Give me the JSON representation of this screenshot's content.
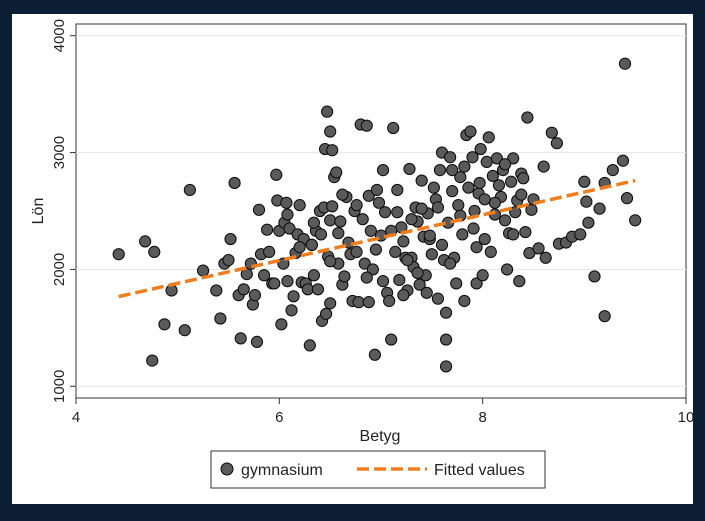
{
  "chart_data": {
    "type": "scatter",
    "title": "",
    "xlabel": "Betyg",
    "ylabel": "Lön",
    "xlim": [
      4,
      10
    ],
    "ylim": [
      900,
      4100
    ],
    "xticks": [
      4,
      6,
      8,
      10
    ],
    "yticks": [
      1000,
      2000,
      3000,
      4000
    ],
    "grid": "horizontal",
    "legend_position": "bottom",
    "colors": {
      "outer_background": "#0c1e33",
      "frame_background": "#ffffff",
      "marker_fill": "#5a5a5a",
      "marker_edge": "#0a0a0a",
      "fit_line": "#f07d1e",
      "grid": "#e6e6e6",
      "axis": "#333333"
    },
    "series": [
      {
        "name": "gymnasium",
        "kind": "scatter",
        "points": [
          [
            4.42,
            2130
          ],
          [
            4.68,
            2240
          ],
          [
            4.77,
            2150
          ],
          [
            4.75,
            1220
          ],
          [
            4.87,
            1530
          ],
          [
            4.94,
            1820
          ],
          [
            5.07,
            1480
          ],
          [
            5.12,
            2680
          ],
          [
            5.25,
            1990
          ],
          [
            5.38,
            1820
          ],
          [
            5.42,
            1580
          ],
          [
            5.46,
            2050
          ],
          [
            5.5,
            2080
          ],
          [
            5.52,
            2260
          ],
          [
            5.56,
            2740
          ],
          [
            5.6,
            1780
          ],
          [
            5.62,
            1410
          ],
          [
            5.65,
            1830
          ],
          [
            5.68,
            1960
          ],
          [
            5.72,
            2050
          ],
          [
            5.74,
            1700
          ],
          [
            5.76,
            1780
          ],
          [
            5.78,
            1380
          ],
          [
            5.8,
            2510
          ],
          [
            5.82,
            2130
          ],
          [
            5.85,
            1950
          ],
          [
            5.88,
            2340
          ],
          [
            5.9,
            2150
          ],
          [
            5.93,
            1880
          ],
          [
            5.95,
            1880
          ],
          [
            5.97,
            2810
          ],
          [
            5.98,
            2590
          ],
          [
            6.0,
            2330
          ],
          [
            6.02,
            1530
          ],
          [
            6.04,
            2050
          ],
          [
            6.05,
            2400
          ],
          [
            6.07,
            2570
          ],
          [
            6.08,
            1900
          ],
          [
            6.1,
            2350
          ],
          [
            6.12,
            1650
          ],
          [
            6.14,
            1770
          ],
          [
            6.16,
            2140
          ],
          [
            6.18,
            2300
          ],
          [
            6.2,
            2550
          ],
          [
            6.22,
            1890
          ],
          [
            6.24,
            2260
          ],
          [
            6.26,
            1880
          ],
          [
            6.28,
            1830
          ],
          [
            6.3,
            1350
          ],
          [
            6.32,
            2210
          ],
          [
            6.34,
            1950
          ],
          [
            6.36,
            2330
          ],
          [
            6.38,
            1830
          ],
          [
            6.4,
            2500
          ],
          [
            6.42,
            1560
          ],
          [
            6.44,
            2530
          ],
          [
            6.46,
            1620
          ],
          [
            6.48,
            2110
          ],
          [
            6.5,
            2420
          ],
          [
            6.52,
            2540
          ],
          [
            6.45,
            3030
          ],
          [
            6.47,
            3350
          ],
          [
            6.5,
            3180
          ],
          [
            6.5,
            1710
          ],
          [
            6.52,
            3020
          ],
          [
            6.54,
            2790
          ],
          [
            6.56,
            2830
          ],
          [
            6.58,
            2310
          ],
          [
            6.6,
            2410
          ],
          [
            6.62,
            1870
          ],
          [
            6.64,
            1940
          ],
          [
            6.66,
            2620
          ],
          [
            6.68,
            2230
          ],
          [
            6.7,
            2130
          ],
          [
            6.72,
            1730
          ],
          [
            6.74,
            2500
          ],
          [
            6.76,
            2150
          ],
          [
            6.78,
            1720
          ],
          [
            6.8,
            3240
          ],
          [
            6.82,
            2430
          ],
          [
            6.84,
            2050
          ],
          [
            6.86,
            3230
          ],
          [
            6.88,
            2630
          ],
          [
            6.9,
            2330
          ],
          [
            6.92,
            2000
          ],
          [
            6.94,
            1270
          ],
          [
            6.96,
            2680
          ],
          [
            6.98,
            2570
          ],
          [
            7.0,
            2290
          ],
          [
            7.02,
            2850
          ],
          [
            7.04,
            2490
          ],
          [
            7.06,
            1800
          ],
          [
            7.08,
            1730
          ],
          [
            7.1,
            1400
          ],
          [
            7.12,
            3210
          ],
          [
            7.14,
            2150
          ],
          [
            7.16,
            2680
          ],
          [
            7.18,
            1910
          ],
          [
            7.2,
            2360
          ],
          [
            7.22,
            2240
          ],
          [
            7.24,
            2100
          ],
          [
            7.26,
            1820
          ],
          [
            7.28,
            2860
          ],
          [
            7.3,
            2100
          ],
          [
            7.32,
            2020
          ],
          [
            7.34,
            2530
          ],
          [
            7.36,
            2410
          ],
          [
            7.38,
            1870
          ],
          [
            7.4,
            2760
          ],
          [
            7.42,
            2280
          ],
          [
            7.44,
            1950
          ],
          [
            7.46,
            2480
          ],
          [
            7.48,
            2260
          ],
          [
            7.5,
            2130
          ],
          [
            7.52,
            2700
          ],
          [
            7.54,
            2600
          ],
          [
            7.56,
            1750
          ],
          [
            7.58,
            2850
          ],
          [
            7.6,
            3000
          ],
          [
            7.62,
            2080
          ],
          [
            7.64,
            1630
          ],
          [
            7.64,
            1400
          ],
          [
            7.64,
            1170
          ],
          [
            7.66,
            2400
          ],
          [
            7.68,
            2960
          ],
          [
            7.7,
            2670
          ],
          [
            7.72,
            2100
          ],
          [
            7.74,
            1880
          ],
          [
            7.76,
            2550
          ],
          [
            7.78,
            2790
          ],
          [
            7.8,
            2300
          ],
          [
            7.82,
            1730
          ],
          [
            7.84,
            3150
          ],
          [
            7.86,
            2700
          ],
          [
            7.88,
            3180
          ],
          [
            7.9,
            2960
          ],
          [
            7.92,
            2500
          ],
          [
            7.94,
            1880
          ],
          [
            7.96,
            2650
          ],
          [
            7.98,
            3030
          ],
          [
            8.0,
            1950
          ],
          [
            8.02,
            2260
          ],
          [
            8.04,
            2920
          ],
          [
            8.06,
            3130
          ],
          [
            8.08,
            2150
          ],
          [
            8.1,
            2800
          ],
          [
            8.12,
            2470
          ],
          [
            8.14,
            2950
          ],
          [
            8.16,
            2720
          ],
          [
            8.18,
            2620
          ],
          [
            8.2,
            2850
          ],
          [
            8.22,
            2420
          ],
          [
            8.24,
            2000
          ],
          [
            8.26,
            2310
          ],
          [
            8.28,
            2750
          ],
          [
            8.3,
            2950
          ],
          [
            8.32,
            2490
          ],
          [
            8.34,
            2590
          ],
          [
            8.36,
            1900
          ],
          [
            8.38,
            2820
          ],
          [
            8.4,
            2780
          ],
          [
            8.42,
            2320
          ],
          [
            8.44,
            3300
          ],
          [
            8.46,
            2140
          ],
          [
            8.48,
            2510
          ],
          [
            8.5,
            2600
          ],
          [
            8.55,
            2180
          ],
          [
            8.6,
            2880
          ],
          [
            8.62,
            2100
          ],
          [
            8.68,
            3170
          ],
          [
            8.73,
            3080
          ],
          [
            8.75,
            2220
          ],
          [
            8.82,
            2230
          ],
          [
            8.88,
            2280
          ],
          [
            8.96,
            2300
          ],
          [
            9.02,
            2580
          ],
          [
            9.04,
            2400
          ],
          [
            9.1,
            1940
          ],
          [
            9.15,
            2520
          ],
          [
            9.2,
            2740
          ],
          [
            9.2,
            1600
          ],
          [
            9.28,
            2850
          ],
          [
            9.38,
            2930
          ],
          [
            9.4,
            3760
          ],
          [
            9.42,
            2610
          ],
          [
            9.5,
            2420
          ],
          [
            9.0,
            2750
          ],
          [
            7.56,
            2530
          ],
          [
            7.3,
            2430
          ],
          [
            6.95,
            2170
          ],
          [
            6.58,
            2050
          ],
          [
            6.32,
            2210
          ],
          [
            6.08,
            2470
          ],
          [
            7.82,
            2880
          ],
          [
            7.45,
            1800
          ],
          [
            8.38,
            2640
          ],
          [
            6.76,
            2550
          ],
          [
            7.16,
            2490
          ],
          [
            7.91,
            2350
          ],
          [
            6.41,
            2300
          ],
          [
            8.12,
            2570
          ],
          [
            7.68,
            2050
          ],
          [
            6.88,
            1720
          ],
          [
            7.02,
            1900
          ],
          [
            7.36,
            1970
          ],
          [
            7.6,
            2210
          ],
          [
            7.97,
            2740
          ],
          [
            6.62,
            2640
          ],
          [
            7.26,
            2080
          ],
          [
            8.22,
            2900
          ],
          [
            6.2,
            2190
          ],
          [
            7.48,
            2290
          ],
          [
            7.78,
            2460
          ],
          [
            6.86,
            1930
          ],
          [
            7.4,
            2520
          ],
          [
            8.02,
            2600
          ],
          [
            6.5,
            2070
          ],
          [
            7.1,
            2330
          ],
          [
            7.94,
            2190
          ],
          [
            7.7,
            2850
          ],
          [
            6.34,
            2400
          ],
          [
            8.3,
            2300
          ],
          [
            7.22,
            1780
          ]
        ]
      },
      {
        "name": "Fitted values",
        "kind": "line",
        "points": [
          [
            4.42,
            1768
          ],
          [
            9.5,
            2760
          ]
        ]
      }
    ]
  }
}
